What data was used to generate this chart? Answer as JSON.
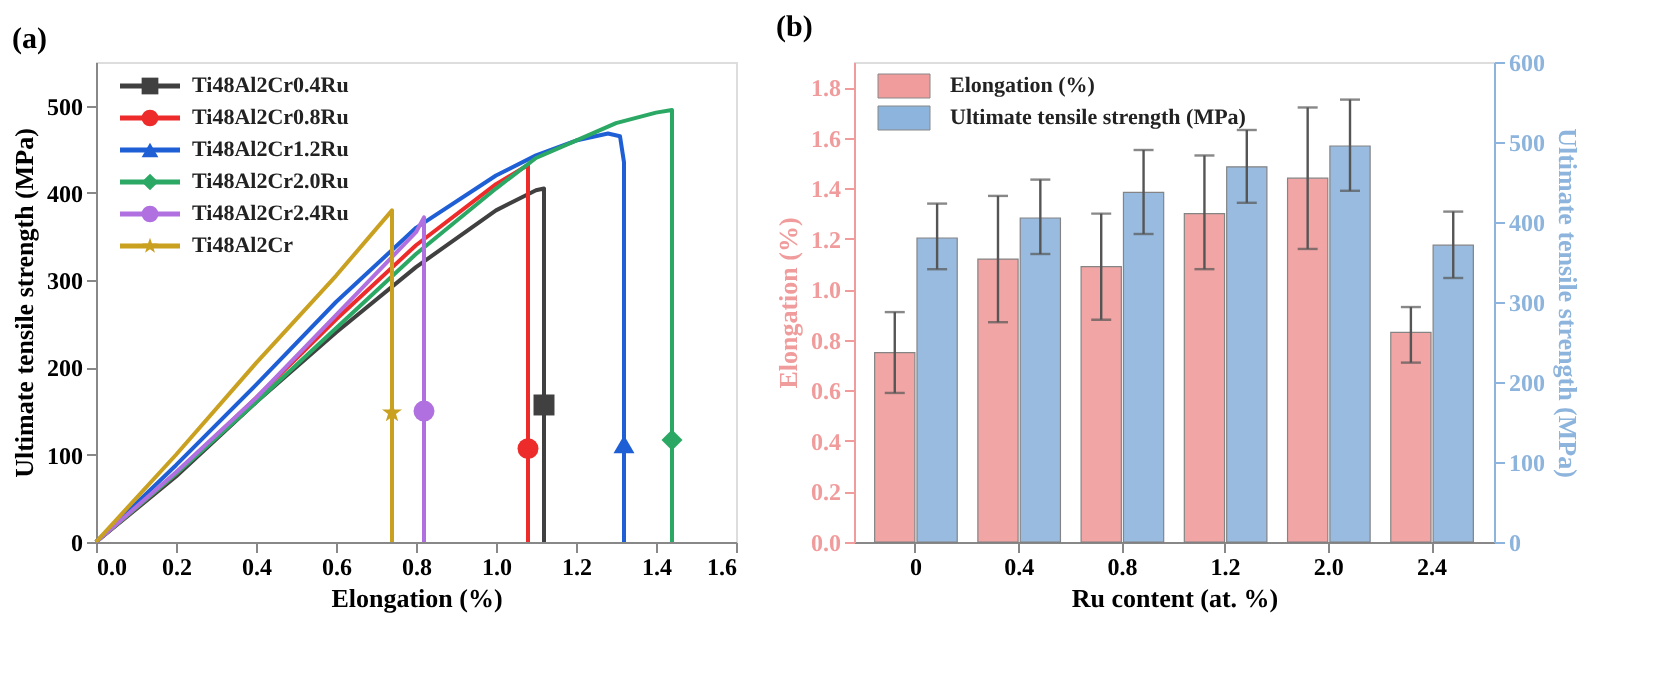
{
  "chart_data": [
    {
      "type": "line",
      "title": "(a)",
      "xlabel": "Elongation (%)",
      "ylabel": "Ultimate tensile strength (MPa)",
      "xlim": [
        0,
        1.6
      ],
      "xticks": [
        {
          "value": 0,
          "label": "0.0"
        },
        0.2,
        0.4,
        0.6,
        0.8,
        {
          "value": 1,
          "label": "1.0"
        },
        1.2,
        1.4,
        1.6
      ],
      "ylim": [
        0,
        550
      ],
      "yticks": [
        0,
        100,
        200,
        300,
        400,
        500
      ],
      "legend": "top left",
      "grid": false,
      "series": [
        {
          "name": "Ti48Al2Cr0.4Ru",
          "color": "#404040",
          "x": [
            0,
            0.2,
            0.4,
            0.6,
            0.8,
            1.0,
            1.1,
            1.12,
            1.12
          ],
          "values": [
            0,
            75,
            160,
            240,
            315,
            380,
            403,
            405,
            0
          ]
        },
        {
          "type": "scatter",
          "marker": "square",
          "color": "#404040",
          "x": [
            1.12
          ],
          "values": [
            157
          ]
        },
        {
          "name": "Ti48Al2Cr0.8Ru",
          "color": "#ee2b2b",
          "x": [
            0,
            0.2,
            0.4,
            0.6,
            0.8,
            1.0,
            1.08,
            1.08
          ],
          "values": [
            0,
            78,
            165,
            255,
            340,
            410,
            432,
            0
          ]
        },
        {
          "type": "scatter",
          "marker": "circle",
          "color": "#ee2b2b",
          "x": [
            1.08
          ],
          "values": [
            107
          ]
        },
        {
          "name": "Ti48Al2Cr1.2Ru",
          "color": "#1f5fd6",
          "x": [
            0,
            0.2,
            0.4,
            0.6,
            0.8,
            1.0,
            1.1,
            1.2,
            1.28,
            1.31,
            1.32,
            1.32
          ],
          "values": [
            0,
            88,
            180,
            275,
            360,
            420,
            443,
            460,
            468,
            465,
            435,
            0
          ]
        },
        {
          "type": "scatter",
          "marker": "triangle",
          "color": "#1f5fd6",
          "x": [
            1.32
          ],
          "values": [
            112
          ]
        },
        {
          "name": "Ti48Al2Cr2.0Ru",
          "color": "#2aa864",
          "x": [
            0,
            0.2,
            0.4,
            0.6,
            0.8,
            1.0,
            1.1,
            1.2,
            1.3,
            1.4,
            1.44,
            1.44
          ],
          "values": [
            0,
            78,
            160,
            245,
            330,
            405,
            440,
            460,
            480,
            492,
            495,
            0
          ]
        },
        {
          "type": "scatter",
          "marker": "diamond",
          "color": "#2aa864",
          "x": [
            1.44
          ],
          "values": [
            117
          ]
        },
        {
          "name": "Ti48Al2Cr2.4Ru",
          "color": "#b070e0",
          "x": [
            0,
            0.2,
            0.4,
            0.6,
            0.8,
            0.82,
            0.82
          ],
          "values": [
            0,
            80,
            165,
            260,
            355,
            372,
            0
          ]
        },
        {
          "type": "scatter",
          "marker": "circle",
          "color": "#b070e0",
          "x": [
            0.82
          ],
          "values": [
            150
          ]
        },
        {
          "name": "Ti48Al2Cr",
          "color": "#c9a020",
          "x": [
            0,
            0.2,
            0.4,
            0.6,
            0.74,
            0.74
          ],
          "values": [
            0,
            100,
            205,
            305,
            380,
            0
          ]
        },
        {
          "type": "scatter",
          "marker": "star",
          "color": "#c9a020",
          "x": [
            0.74
          ],
          "values": [
            148
          ]
        }
      ]
    },
    {
      "type": "bar",
      "title": "(b)",
      "xlabel": "Ru content (at. %)",
      "ylabel": "Elongation (%)",
      "y2label": "Ultimate tensile strength (MPa)",
      "categories": [
        "0",
        "0.4",
        "0.8",
        "1.2",
        "2.0",
        "2.4"
      ],
      "ylim": [
        0,
        1.9
      ],
      "yticks": [
        {
          "value": 0,
          "label": "0.0"
        },
        0.2,
        0.4,
        0.6,
        0.8,
        {
          "value": 1,
          "label": "1.0"
        },
        1.2,
        1.4,
        1.6,
        1.8
      ],
      "y2lim": [
        0,
        600
      ],
      "y2ticks": [
        0,
        100,
        200,
        300,
        400,
        500,
        600
      ],
      "legend": "top left",
      "grid": false,
      "series": [
        {
          "name": "Elongation (%)",
          "color": "#f19c9c",
          "values": [
            0.75,
            1.12,
            1.09,
            1.3,
            1.44,
            0.83
          ],
          "errors": [
            [
              0.59,
              0.91
            ],
            [
              0.87,
              1.37
            ],
            [
              0.88,
              1.3
            ],
            [
              1.08,
              1.53
            ],
            [
              1.16,
              1.72
            ],
            [
              0.71,
              0.93
            ]
          ]
        },
        {
          "name": "Ultimate tensile strength (MPa)",
          "color": "#8db4dc",
          "axis": "y2",
          "values": [
            380,
            405,
            437,
            469,
            495,
            371
          ],
          "errors": [
            [
              341,
              423
            ],
            [
              360,
              453
            ],
            [
              385,
              490
            ],
            [
              424,
              515
            ],
            [
              439,
              553
            ],
            [
              330,
              413
            ]
          ]
        }
      ]
    }
  ]
}
